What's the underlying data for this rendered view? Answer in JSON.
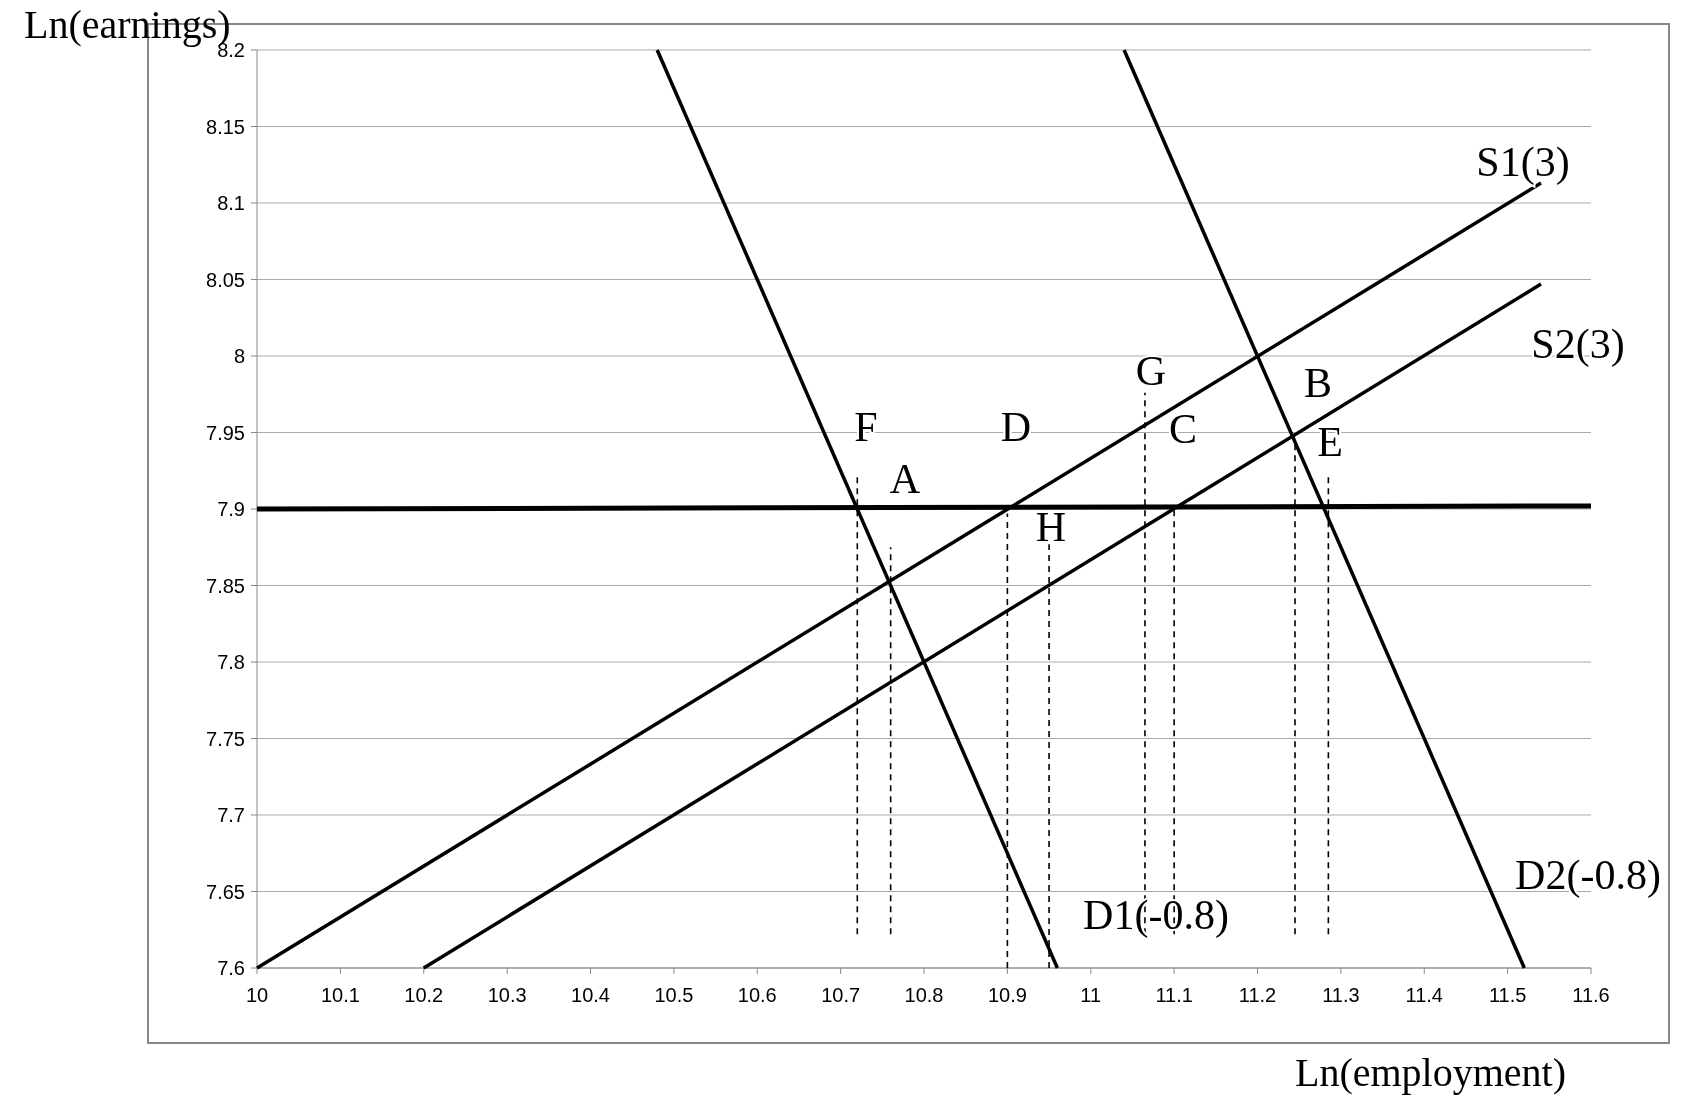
{
  "chart_data": {
    "type": "line",
    "xlabel": "Ln(employment)",
    "ylabel": "Ln(earnings)",
    "xlim": [
      10,
      11.6
    ],
    "ylim": [
      7.6,
      8.2
    ],
    "xticks": [
      10,
      10.1,
      10.2,
      10.3,
      10.4,
      10.5,
      10.6,
      10.7,
      10.8,
      10.9,
      11,
      11.1,
      11.2,
      11.3,
      11.4,
      11.5,
      11.6
    ],
    "yticks": [
      7.6,
      7.65,
      7.7,
      7.75,
      7.8,
      7.85,
      7.9,
      7.95,
      8,
      8.05,
      8.1,
      8.15,
      8.2
    ],
    "grid": "y",
    "marker": "none",
    "line_style": "solid",
    "series": [
      {
        "color": "#000000",
        "x": [
          10,
          11.54
        ],
        "values": [
          7.6,
          8.113
        ]
      },
      {
        "color": "#000000",
        "x": [
          10.2,
          11.54
        ],
        "values": [
          7.6,
          8.047
        ]
      },
      {
        "color": "#000000",
        "x": [
          10.48,
          10.96
        ],
        "values": [
          8.2,
          7.6
        ]
      },
      {
        "color": "#000000",
        "x": [
          11.04,
          11.52
        ],
        "values": [
          8.2,
          7.6
        ]
      },
      {
        "color": "#000000",
        "x": [
          10,
          11.6
        ],
        "values": [
          7.9,
          7.902
        ]
      },
      {
        "color": "#000000",
        "line_style": "dashed",
        "x": [
          10.72,
          10.72
        ],
        "values": [
          7.622,
          7.921
        ]
      },
      {
        "color": "#000000",
        "line_style": "dashed",
        "x": [
          10.76,
          10.76
        ],
        "values": [
          7.622,
          7.875
        ]
      },
      {
        "color": "#000000",
        "line_style": "dashed",
        "x": [
          10.9,
          10.9
        ],
        "values": [
          7.6,
          7.897
        ]
      },
      {
        "color": "#000000",
        "line_style": "dashed",
        "x": [
          10.95,
          10.95
        ],
        "values": [
          7.6,
          7.877
        ]
      },
      {
        "color": "#000000",
        "line_style": "dashed",
        "x": [
          11.065,
          11.065
        ],
        "values": [
          7.622,
          7.976
        ]
      },
      {
        "color": "#000000",
        "line_style": "dashed",
        "x": [
          11.1,
          11.1
        ],
        "values": [
          7.622,
          7.9
        ]
      },
      {
        "color": "#000000",
        "line_style": "dashed",
        "x": [
          11.245,
          11.245
        ],
        "values": [
          7.622,
          7.942
        ]
      },
      {
        "color": "#000000",
        "line_style": "dashed",
        "x": [
          11.285,
          11.285
        ],
        "values": [
          7.622,
          7.924
        ]
      }
    ],
    "annotations": [
      "S1(3)",
      "S2(3)",
      "D1(-0.8)",
      "D2(-0.8)",
      "F",
      "A",
      "D",
      "H",
      "G",
      "C",
      "B",
      "E"
    ]
  }
}
